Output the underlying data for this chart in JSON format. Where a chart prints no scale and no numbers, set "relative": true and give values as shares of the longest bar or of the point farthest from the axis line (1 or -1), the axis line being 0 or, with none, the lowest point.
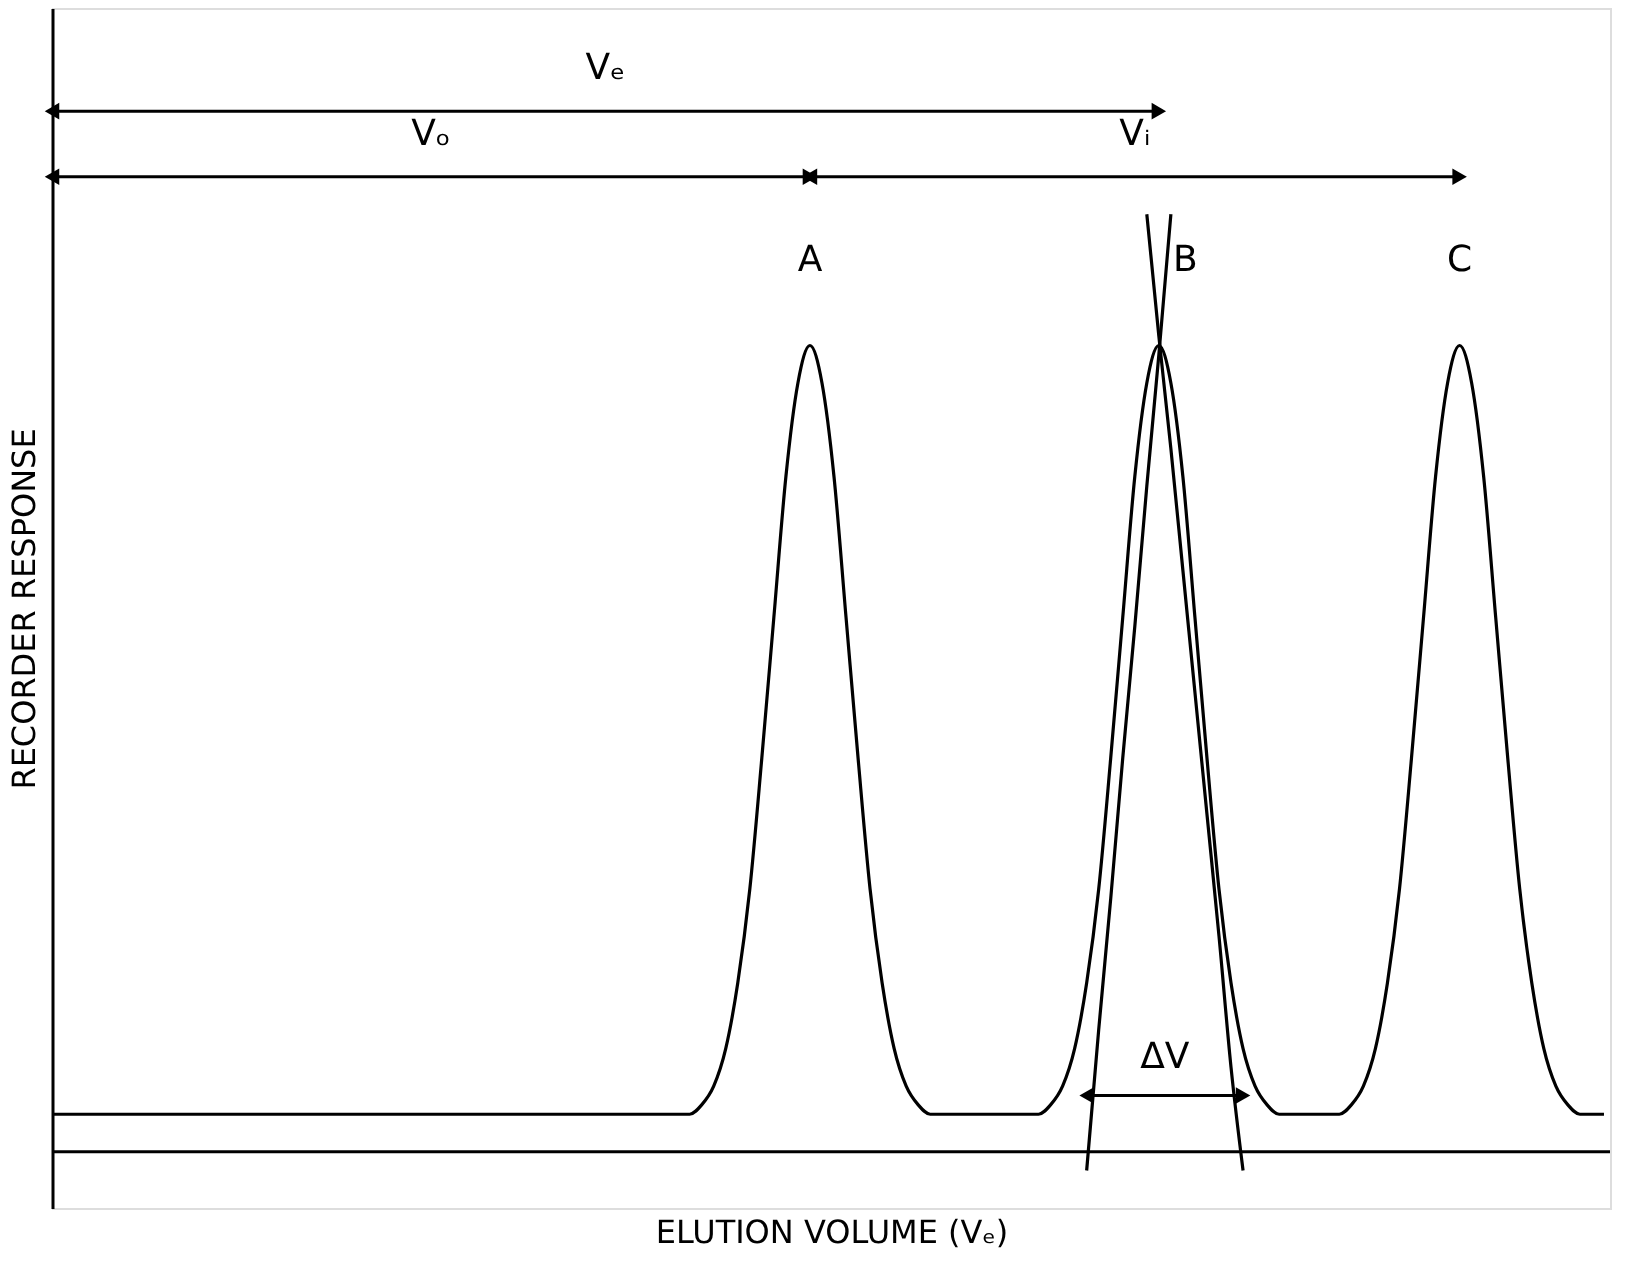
{
  "chart_data": {
    "type": "line",
    "relative": true,
    "xlabel": "ELUTION VOLUME (Vₑ)",
    "ylabel": "RECORDER RESPONSE",
    "tick_labels": false,
    "grid": false,
    "marker": "none",
    "line_style": "solid",
    "annotations": [
      "Vₑ",
      "Vₒ",
      "Vᵢ",
      "A",
      "B",
      "C",
      "ΔV"
    ],
    "categories": [
      null,
      null,
      null,
      null,
      null,
      null,
      null,
      null,
      null,
      null,
      null,
      null,
      null,
      null,
      null,
      null,
      null,
      null,
      null,
      null,
      null,
      null,
      null,
      null,
      null,
      null,
      null,
      null,
      null,
      null,
      null,
      null,
      null,
      null,
      null,
      null,
      null,
      null,
      null,
      null,
      null,
      null,
      null,
      null,
      null,
      null,
      null,
      null,
      null,
      null,
      null,
      null,
      null,
      null,
      null,
      null,
      null,
      null,
      null,
      null,
      null,
      null,
      null,
      null,
      null,
      null,
      null,
      null,
      null,
      null,
      null,
      null,
      null,
      null,
      null,
      null,
      null,
      null,
      null,
      null,
      null,
      null,
      null,
      null,
      null,
      null,
      null,
      null,
      null,
      null,
      null,
      null,
      null,
      null,
      null,
      null,
      null,
      null,
      null,
      null,
      null,
      null,
      null,
      null,
      null,
      null,
      null,
      null,
      null,
      null,
      null,
      null,
      null,
      null,
      null,
      null,
      null,
      null,
      null,
      null,
      null,
      null,
      null,
      null,
      null,
      null,
      null,
      null,
      null,
      null
    ],
    "series": [
      {
        "color": "#000000",
        "values": [
          0.04,
          0.04,
          0.04,
          0.04,
          0.04,
          0.04,
          0.04,
          0.04,
          0.04,
          0.04,
          0.04,
          0.04,
          0.04,
          0.04,
          0.04,
          0.04,
          0.04,
          0.04,
          0.04,
          0.04,
          0.04,
          0.04,
          0.04,
          0.04,
          0.04,
          0.04,
          0.04,
          0.04,
          0.04,
          0.04,
          0.04,
          0.04,
          0.04,
          0.04,
          0.04,
          0.04,
          0.04,
          0.04,
          0.04,
          0.04,
          0.04,
          0.04,
          0.04,
          0.04,
          0.04,
          0.04,
          0.04,
          0.04,
          0.04,
          0.04,
          0.04,
          0.04,
          0.04,
          0.04,
          0.05,
          0.07,
          0.11,
          0.18,
          0.28,
          0.42,
          0.57,
          0.72,
          0.82,
          0.86,
          0.82,
          0.72,
          0.57,
          0.42,
          0.28,
          0.18,
          0.11,
          0.07,
          0.05,
          0.04,
          0.04,
          0.04,
          0.04,
          0.04,
          0.04,
          0.04,
          0.04,
          0.04,
          0.04,
          0.05,
          0.07,
          0.11,
          0.18,
          0.28,
          0.42,
          0.57,
          0.72,
          0.82,
          0.86,
          0.82,
          0.72,
          0.57,
          0.42,
          0.28,
          0.18,
          0.11,
          0.07,
          0.05,
          0.04,
          0.04,
          0.04,
          0.04,
          0.04,
          0.04,
          0.05,
          0.07,
          0.11,
          0.18,
          0.28,
          0.42,
          0.57,
          0.72,
          0.82,
          0.86,
          0.82,
          0.72,
          0.57,
          0.42,
          0.28,
          0.18,
          0.11,
          0.07,
          0.05,
          0.04,
          0.04,
          0.04
        ]
      },
      {
        "color": "#000000",
        "values": [
          null,
          null,
          null,
          null,
          null,
          null,
          null,
          null,
          null,
          null,
          null,
          null,
          null,
          null,
          null,
          null,
          null,
          null,
          null,
          null,
          null,
          null,
          null,
          null,
          null,
          null,
          null,
          null,
          null,
          null,
          null,
          null,
          null,
          null,
          null,
          null,
          null,
          null,
          null,
          null,
          null,
          null,
          null,
          null,
          null,
          null,
          null,
          null,
          null,
          null,
          null,
          null,
          null,
          null,
          null,
          null,
          null,
          null,
          null,
          null,
          null,
          null,
          null,
          null,
          null,
          null,
          null,
          null,
          null,
          null,
          null,
          null,
          null,
          null,
          null,
          null,
          null,
          null,
          null,
          null,
          null,
          null,
          null,
          null,
          null,
          null,
          -0.02,
          0.13,
          0.27,
          0.42,
          0.56,
          0.71,
          0.85,
          1.0,
          null,
          null,
          null,
          null,
          null,
          null,
          null,
          null,
          null,
          null,
          null,
          null,
          null,
          null,
          null,
          null,
          null,
          null,
          null,
          null,
          null,
          null,
          null,
          null,
          null,
          null,
          null,
          null,
          null,
          null,
          null,
          null,
          null,
          null,
          null,
          null
        ]
      },
      {
        "color": "#000000",
        "values": [
          null,
          null,
          null,
          null,
          null,
          null,
          null,
          null,
          null,
          null,
          null,
          null,
          null,
          null,
          null,
          null,
          null,
          null,
          null,
          null,
          null,
          null,
          null,
          null,
          null,
          null,
          null,
          null,
          null,
          null,
          null,
          null,
          null,
          null,
          null,
          null,
          null,
          null,
          null,
          null,
          null,
          null,
          null,
          null,
          null,
          null,
          null,
          null,
          null,
          null,
          null,
          null,
          null,
          null,
          null,
          null,
          null,
          null,
          null,
          null,
          null,
          null,
          null,
          null,
          null,
          null,
          null,
          null,
          null,
          null,
          null,
          null,
          null,
          null,
          null,
          null,
          null,
          null,
          null,
          null,
          null,
          null,
          null,
          null,
          null,
          null,
          null,
          null,
          null,
          null,
          null,
          1.0,
          0.87,
          0.75,
          0.62,
          0.49,
          0.36,
          0.23,
          0.09,
          -0.02,
          null,
          null,
          null,
          null,
          null,
          null,
          null,
          null,
          null,
          null,
          null,
          null,
          null,
          null,
          null,
          null,
          null,
          null,
          null,
          null,
          null,
          null,
          null,
          null,
          null,
          null,
          null,
          null,
          null,
          null
        ]
      }
    ]
  }
}
